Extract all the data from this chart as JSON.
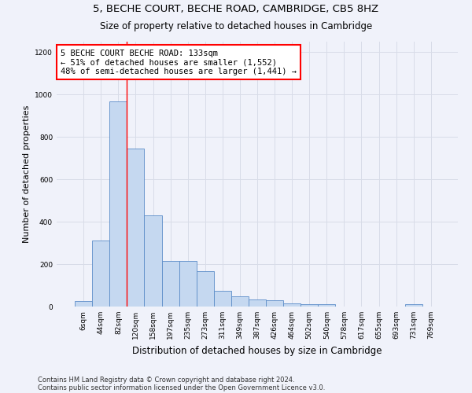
{
  "title_line1": "5, BECHE COURT, BECHE ROAD, CAMBRIDGE, CB5 8HZ",
  "title_line2": "Size of property relative to detached houses in Cambridge",
  "xlabel": "Distribution of detached houses by size in Cambridge",
  "ylabel": "Number of detached properties",
  "categories": [
    "6sqm",
    "44sqm",
    "82sqm",
    "120sqm",
    "158sqm",
    "197sqm",
    "235sqm",
    "273sqm",
    "311sqm",
    "349sqm",
    "387sqm",
    "426sqm",
    "464sqm",
    "502sqm",
    "540sqm",
    "578sqm",
    "617sqm",
    "655sqm",
    "693sqm",
    "731sqm",
    "769sqm"
  ],
  "values": [
    25,
    310,
    965,
    745,
    430,
    215,
    215,
    165,
    75,
    50,
    35,
    30,
    15,
    10,
    10,
    0,
    0,
    0,
    0,
    10,
    0
  ],
  "bar_color": "#c5d8f0",
  "bar_edge_color": "#5b8cc8",
  "annotation_text": "5 BECHE COURT BECHE ROAD: 133sqm\n← 51% of detached houses are smaller (1,552)\n48% of semi-detached houses are larger (1,441) →",
  "vline_color": "red",
  "vline_bin_index": 3,
  "ylim": [
    0,
    1250
  ],
  "yticks": [
    0,
    200,
    400,
    600,
    800,
    1000,
    1200
  ],
  "footer_line1": "Contains HM Land Registry data © Crown copyright and database right 2024.",
  "footer_line2": "Contains public sector information licensed under the Open Government Licence v3.0.",
  "grid_color": "#d8dce8",
  "background_color": "#f0f2fa"
}
